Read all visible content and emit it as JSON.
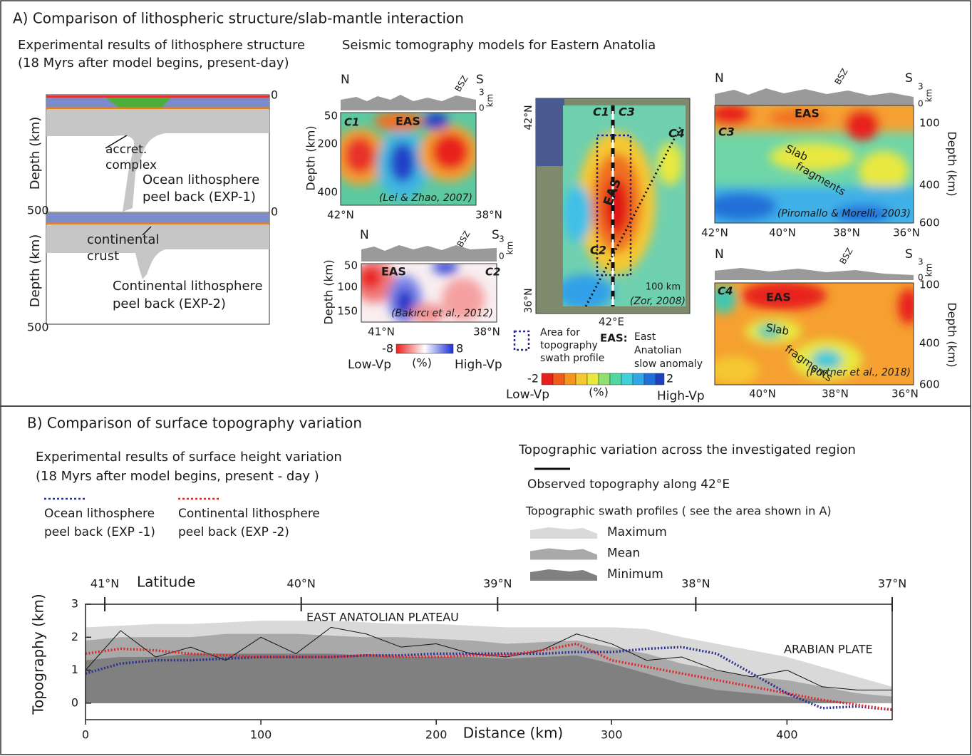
{
  "panel_a": {
    "title": "A) Comparison of lithospheric structure/slab-mantle interaction",
    "experiment": {
      "title": [
        "Experimental results of lithosphere structure",
        "(18 Myrs after model begins, present-day)"
      ],
      "depth_label": "Depth (km)",
      "exp1_ticks": [
        "0",
        "500"
      ],
      "exp2_ticks": [
        "0",
        "500"
      ],
      "accretionary": [
        "accret.",
        "complex"
      ],
      "exp1_label": [
        "Ocean lithosphere",
        "peel back (EXP-1)"
      ],
      "crust_label": [
        "continental",
        "crust"
      ],
      "exp2_label": [
        "Continental lithosphere",
        "peel back (EXP-2)"
      ]
    },
    "tomography": {
      "title": "Seismic tomography models for Eastern Anatolia",
      "c1": {
        "north": "N",
        "south": "S",
        "bsz": "BSZ",
        "topo_ticks": [
          "3",
          "0"
        ],
        "topo_unit": "km",
        "id": "C1",
        "anomaly": "EAS",
        "depth_label": "Depth (km)",
        "depth_ticks": [
          "50",
          "200",
          "400"
        ],
        "source": "(Lei & Zhao, 2007)",
        "lat_ticks": [
          "42°N",
          "38°N"
        ]
      },
      "c2": {
        "north": "N",
        "south": "S",
        "bsz": "BSZ",
        "topo_ticks": [
          "3",
          "0"
        ],
        "topo_unit": "km",
        "id": "C2",
        "anomaly": "EAS",
        "depth_label": "Depth (km)",
        "depth_ticks": [
          "50",
          "100",
          "150"
        ],
        "source": "(Bakırcı et al., 2012)",
        "lat_ticks": [
          "41°N",
          "38°N"
        ],
        "colorbar": {
          "min": "-8",
          "max": "8",
          "unit": "(%)",
          "low": "Low-Vp",
          "high": "High-Vp"
        }
      },
      "map": {
        "lat_ticks": [
          "42°N",
          "36°N"
        ],
        "lon_tick": "42°E",
        "profiles": [
          "C1",
          "C3",
          "C4",
          "C2"
        ],
        "anomaly": "EAS",
        "scale": "100 km",
        "source": "(Zor, 2008)",
        "swath_legend": [
          "Area for",
          "topography",
          "swath profile"
        ],
        "eas_key": "EAS:",
        "eas_text": [
          "East",
          "Anatolian",
          "slow anomaly"
        ],
        "colorbar": {
          "min": "-2",
          "max": "2",
          "unit": "(%)",
          "low": "Low-Vp",
          "high": "High-Vp"
        }
      },
      "c3": {
        "north": "N",
        "south": "S",
        "bsz": "BSZ",
        "topo_ticks": [
          "3",
          "0"
        ],
        "topo_unit": "km",
        "id": "C3",
        "anomaly": "EAS",
        "slab": [
          "Slab",
          "fragments"
        ],
        "source": "(Piromallo & Morelli, 2003)",
        "depth_label": "Depth (km)",
        "depth_ticks": [
          "100",
          "400",
          "600"
        ],
        "lat_ticks": [
          "42°N",
          "40°N",
          "38°N",
          "36°N"
        ]
      },
      "c4": {
        "north": "N",
        "south": "S",
        "bsz": "BSZ",
        "topo_ticks": [
          "3",
          "0"
        ],
        "topo_unit": "km",
        "id": "C4",
        "anomaly": "EAS",
        "slab": [
          "Slab",
          "fragments"
        ],
        "source": "(Portner et al., 2018)",
        "depth_label": "Depth (km)",
        "depth_ticks": [
          "100",
          "400",
          "600"
        ],
        "lat_ticks": [
          "40°N",
          "38°N",
          "36°N"
        ]
      }
    }
  },
  "panel_b": {
    "title": "B) Comparison of surface topography variation",
    "experiment_title": [
      "Experimental results of surface height variation",
      "(18 Myrs after model begins, present - day )"
    ],
    "legend_title": "Topographic variation across the investigated region",
    "swath_title": "Topographic swath profiles ( see the area shown in A)",
    "latitude_label": "Latitude"
  },
  "chart_data": {
    "type": "line",
    "x_label": "Distance (km)",
    "y_label": "Topography (km)",
    "annotations": [
      "EAST ANATOLIAN PLATEAU",
      "ARABIAN PLATE"
    ],
    "x": [
      0,
      20,
      40,
      60,
      80,
      100,
      120,
      140,
      160,
      180,
      200,
      220,
      240,
      260,
      280,
      300,
      320,
      340,
      360,
      380,
      400,
      420,
      440,
      460
    ],
    "xlim": [
      0,
      460
    ],
    "xticks": [
      0,
      100,
      200,
      300,
      400
    ],
    "x2ticks": [
      {
        "value": 11,
        "label": "41°N"
      },
      {
        "value": 123,
        "label": "40°N"
      },
      {
        "value": 235,
        "label": "39°N"
      },
      {
        "value": 348,
        "label": "38°N"
      },
      {
        "value": 460,
        "label": "37°N"
      }
    ],
    "ylim": [
      -0.5,
      3
    ],
    "yticks": [
      0,
      1,
      2,
      3
    ],
    "series": [
      {
        "name": "Maximum",
        "kind": "area",
        "color": "#d9d9d9",
        "values": [
          2.3,
          2.35,
          2.4,
          2.4,
          2.45,
          2.5,
          2.5,
          2.5,
          2.45,
          2.4,
          2.4,
          2.35,
          2.3,
          2.3,
          2.3,
          2.3,
          2.25,
          2.0,
          1.8,
          1.6,
          1.4,
          1.1,
          0.8,
          0.5
        ]
      },
      {
        "name": "Mean",
        "kind": "area",
        "color": "#a9a9a9",
        "values": [
          1.9,
          2.0,
          2.0,
          2.0,
          2.1,
          2.1,
          2.1,
          2.05,
          2.0,
          2.0,
          1.95,
          1.9,
          1.8,
          1.85,
          1.9,
          1.7,
          1.5,
          1.2,
          1.0,
          0.8,
          0.7,
          0.5,
          0.3,
          0.2
        ]
      },
      {
        "name": "Minimum",
        "kind": "area",
        "color": "#808080",
        "values": [
          1.3,
          1.4,
          1.4,
          1.5,
          1.5,
          1.5,
          1.5,
          1.5,
          1.45,
          1.4,
          1.4,
          1.4,
          1.35,
          1.4,
          1.45,
          1.2,
          0.9,
          0.6,
          0.4,
          0.3,
          0.2,
          0.1,
          0.0,
          0.0
        ]
      },
      {
        "name": "Observed topography along 42°E",
        "kind": "line",
        "color": "#111111",
        "values": [
          1.0,
          2.2,
          1.4,
          1.7,
          1.3,
          2.0,
          1.5,
          2.3,
          2.1,
          1.7,
          1.8,
          1.5,
          1.4,
          1.6,
          2.1,
          1.8,
          1.3,
          1.4,
          1.0,
          0.8,
          1.0,
          0.5,
          0.4,
          0.4
        ]
      },
      {
        "name": "Ocean lithosphere peel back (EXP -1)",
        "kind": "dotted",
        "color": "#2b2f8f",
        "values": [
          0.9,
          1.2,
          1.3,
          1.3,
          1.35,
          1.4,
          1.4,
          1.4,
          1.45,
          1.45,
          1.5,
          1.5,
          1.5,
          1.5,
          1.55,
          1.55,
          1.65,
          1.7,
          1.5,
          0.9,
          0.3,
          -0.15,
          -0.1,
          -0.2
        ]
      },
      {
        "name": "Continental lithosphere peel back (EXP -2)",
        "kind": "dotted",
        "color": "#e0262b",
        "values": [
          1.5,
          1.65,
          1.6,
          1.5,
          1.45,
          1.4,
          1.4,
          1.4,
          1.45,
          1.4,
          1.4,
          1.45,
          1.45,
          1.6,
          1.8,
          1.3,
          1.1,
          0.9,
          0.7,
          0.5,
          0.3,
          0.1,
          -0.05,
          -0.2
        ]
      }
    ]
  }
}
